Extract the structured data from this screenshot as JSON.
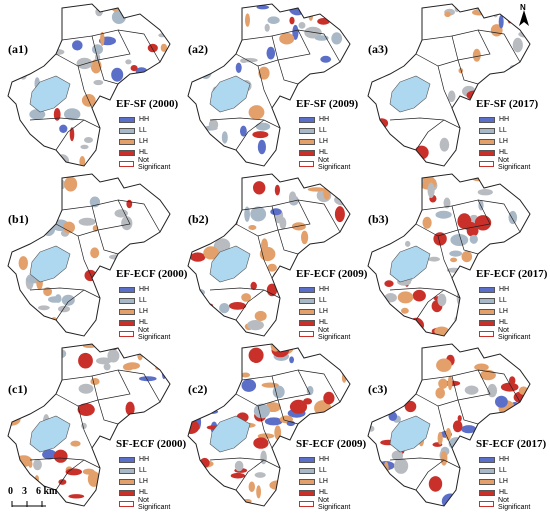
{
  "north": {
    "label": "N",
    "icon": "north-arrow-icon"
  },
  "scale": {
    "ticks": [
      "0",
      "3",
      "6 km"
    ]
  },
  "legend_colors": {
    "HH": "#5b6fc8",
    "LL": "#a9b8c6",
    "LH": "#e3a06a",
    "HL": "#c9302a",
    "NS": "#ffffff",
    "water": "#aed8ef",
    "background_gray": "#b8bcc0"
  },
  "panels": [
    {
      "id": "a1",
      "label": "(a1)",
      "title": "EF-SF (2000)",
      "legend": [
        "HH",
        "LL",
        "LH",
        "HL",
        "Not Significant"
      ]
    },
    {
      "id": "a2",
      "label": "(a2)",
      "title": "EF-SF (2009)",
      "legend": [
        "HH",
        "LL",
        "LH",
        "HL",
        "Not Significant"
      ]
    },
    {
      "id": "a3",
      "label": "(a3)",
      "title": "EF-SF (2017)",
      "legend": [
        "HH",
        "LL",
        "LH",
        "HL",
        "Not Significant"
      ]
    },
    {
      "id": "b1",
      "label": "(b1)",
      "title": "EF-ECF (2000)",
      "legend": [
        "HH",
        "LL",
        "LH",
        "HL",
        "Not Significant"
      ]
    },
    {
      "id": "b2",
      "label": "(b2)",
      "title": "EF-ECF (2009)",
      "legend": [
        "HH",
        "LL",
        "LH",
        "HL",
        "Not Significant"
      ]
    },
    {
      "id": "b3",
      "label": "(b3)",
      "title": "EF-ECF (2017)",
      "legend": [
        "HH",
        "LL",
        "LH",
        "HL",
        "Not Significant"
      ]
    },
    {
      "id": "c1",
      "label": "(c1)",
      "title": "SF-ECF (2000)",
      "legend": [
        "HH",
        "LL",
        "LH",
        "HL",
        "Not Significant"
      ]
    },
    {
      "id": "c2",
      "label": "(c2)",
      "title": "SF-ECF (2009)",
      "legend": [
        "HH",
        "LL",
        "LH",
        "HL",
        "Not Significant"
      ]
    },
    {
      "id": "c3",
      "label": "(c3)",
      "title": "SF-ECF (2017)",
      "legend": [
        "HH",
        "LL",
        "LH",
        "HL",
        "Not Significant"
      ]
    }
  ]
}
